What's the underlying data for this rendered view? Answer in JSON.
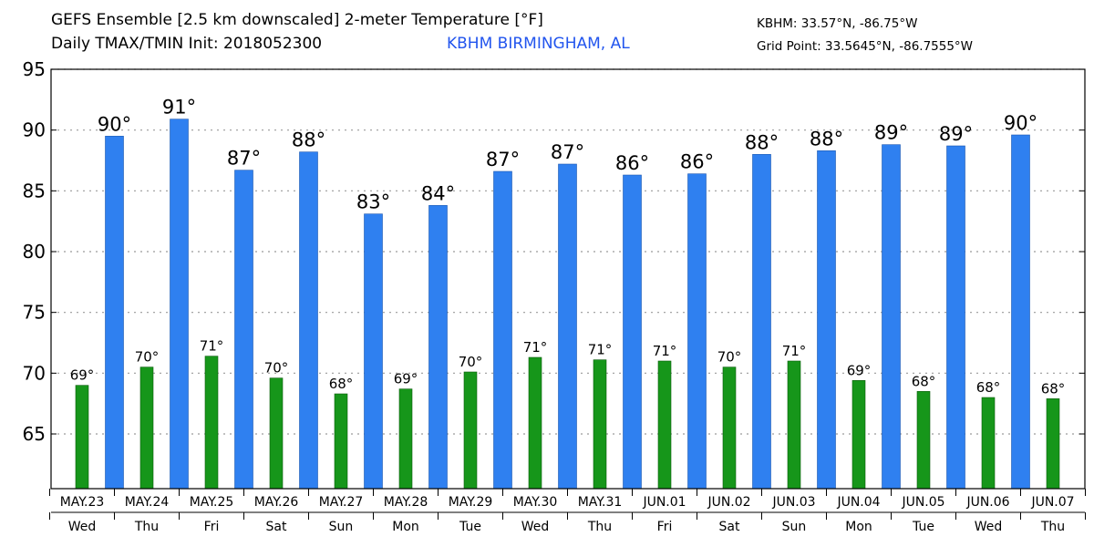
{
  "header": {
    "title_line1": "GEFS Ensemble [2.5 km downscaled] 2-meter Temperature [°F]",
    "title_line2": "Daily TMAX/TMIN Init: 2018052300",
    "station": "KBHM BIRMINGHAM, AL",
    "station_coords": "KBHM: 33.57°N, -86.75°W",
    "grid_point": "Grid Point: 33.5645°N, -86.7555°W"
  },
  "colors": {
    "tmax": "#2f80f0",
    "tmin": "#16961a",
    "station": "#2255ee"
  },
  "chart_data": {
    "type": "bar",
    "ylim": [
      60.5,
      95
    ],
    "yticks": [
      65,
      70,
      75,
      80,
      85,
      90,
      95
    ],
    "grid": true,
    "dates": [
      "MAY.23",
      "MAY.24",
      "MAY.25",
      "MAY.26",
      "MAY.27",
      "MAY.28",
      "MAY.29",
      "MAY.30",
      "MAY.31",
      "JUN.01",
      "JUN.02",
      "JUN.03",
      "JUN.04",
      "JUN.05",
      "JUN.06",
      "JUN.07"
    ],
    "weekdays": [
      "Wed",
      "Thu",
      "Fri",
      "Sat",
      "Sun",
      "Mon",
      "Tue",
      "Wed",
      "Thu",
      "Fri",
      "Sat",
      "Sun",
      "Mon",
      "Tue",
      "Wed",
      "Thu"
    ],
    "tmin": {
      "values": [
        69.0,
        70.5,
        71.4,
        69.6,
        68.3,
        68.7,
        70.1,
        71.3,
        71.1,
        71.0,
        70.5,
        71.0,
        69.4,
        68.5,
        68.0,
        67.9
      ],
      "labels": [
        "69°",
        "70°",
        "71°",
        "70°",
        "68°",
        "69°",
        "70°",
        "71°",
        "71°",
        "71°",
        "70°",
        "71°",
        "69°",
        "68°",
        "68°",
        "68°"
      ]
    },
    "tmax": {
      "values": [
        89.5,
        90.9,
        86.7,
        88.2,
        83.1,
        83.8,
        86.6,
        87.2,
        86.3,
        86.4,
        88.0,
        88.3,
        88.8,
        88.7,
        89.6
      ],
      "labels": [
        "90°",
        "91°",
        "87°",
        "88°",
        "83°",
        "84°",
        "87°",
        "87°",
        "86°",
        "86°",
        "88°",
        "88°",
        "89°",
        "89°",
        "90°"
      ]
    }
  }
}
